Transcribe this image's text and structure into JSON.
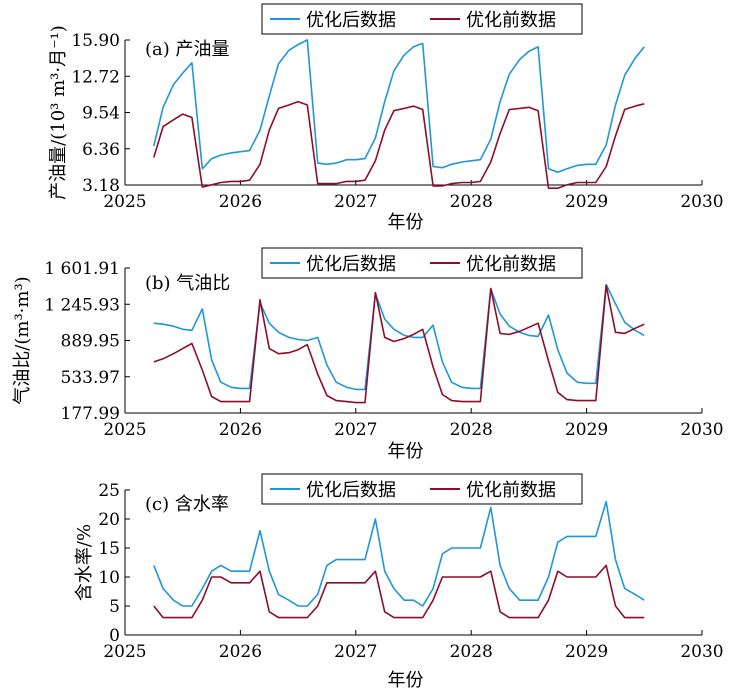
{
  "colors": {
    "after": "#1f96d8",
    "before": "#8c0e2a"
  },
  "chart_data": [
    {
      "type": "line",
      "title": "(a) 产油量",
      "xlabel": "年份",
      "ylabel": "产油量/(10³ m³·月⁻¹)",
      "xlim": [
        2025,
        2030
      ],
      "ylim": [
        3.18,
        15.9
      ],
      "xticks": [
        "2025",
        "2026",
        "2027",
        "2028",
        "2029",
        "2030"
      ],
      "yticks": [
        "3.18",
        "6.36",
        "9.54",
        "12.72",
        "15.90"
      ],
      "legend": [
        "优化后数据",
        "优化前数据"
      ],
      "legend_position": "top",
      "series": [
        {
          "name": "优化后数据",
          "x": [
            2025.25,
            2025.33,
            2025.42,
            2025.5,
            2025.58,
            2025.67,
            2025.75,
            2025.83,
            2025.92,
            2026.0,
            2026.08,
            2026.17,
            2026.25,
            2026.33,
            2026.42,
            2026.5,
            2026.58,
            2026.67,
            2026.75,
            2026.83,
            2026.92,
            2027.0,
            2027.08,
            2027.17,
            2027.25,
            2027.33,
            2027.42,
            2027.5,
            2027.58,
            2027.67,
            2027.75,
            2027.83,
            2027.92,
            2028.0,
            2028.08,
            2028.17,
            2028.25,
            2028.33,
            2028.42,
            2028.5,
            2028.58,
            2028.67,
            2028.75,
            2028.83,
            2028.92,
            2029.0,
            2029.08,
            2029.17,
            2029.25,
            2029.33,
            2029.42,
            2029.5
          ],
          "values": [
            6.6,
            10.0,
            12.0,
            13.0,
            13.9,
            4.6,
            5.5,
            5.8,
            6.0,
            6.1,
            6.2,
            8.0,
            11.0,
            13.8,
            15.0,
            15.5,
            15.9,
            5.1,
            5.0,
            5.1,
            5.4,
            5.4,
            5.5,
            7.3,
            10.5,
            13.2,
            14.6,
            15.3,
            15.6,
            4.8,
            4.7,
            5.0,
            5.2,
            5.3,
            5.4,
            7.2,
            10.5,
            12.9,
            14.2,
            14.9,
            15.3,
            4.6,
            4.3,
            4.6,
            4.9,
            5.0,
            5.0,
            6.7,
            10.2,
            12.8,
            14.3,
            15.3
          ]
        },
        {
          "name": "优化前数据",
          "x": [
            2025.25,
            2025.33,
            2025.42,
            2025.5,
            2025.58,
            2025.67,
            2025.75,
            2025.83,
            2025.92,
            2026.0,
            2026.08,
            2026.17,
            2026.25,
            2026.33,
            2026.42,
            2026.5,
            2026.58,
            2026.67,
            2026.75,
            2026.83,
            2026.92,
            2027.0,
            2027.08,
            2027.17,
            2027.25,
            2027.33,
            2027.42,
            2027.5,
            2027.58,
            2027.67,
            2027.75,
            2027.83,
            2027.92,
            2028.0,
            2028.08,
            2028.17,
            2028.25,
            2028.33,
            2028.42,
            2028.5,
            2028.58,
            2028.67,
            2028.75,
            2028.83,
            2028.92,
            2029.0,
            2029.08,
            2029.17,
            2029.25,
            2029.33,
            2029.42,
            2029.5
          ],
          "values": [
            5.6,
            8.3,
            8.9,
            9.4,
            9.1,
            3.0,
            3.2,
            3.4,
            3.5,
            3.5,
            3.6,
            5.0,
            8.0,
            9.9,
            10.2,
            10.5,
            10.2,
            3.3,
            3.3,
            3.3,
            3.5,
            3.5,
            3.6,
            5.3,
            8.0,
            9.7,
            9.9,
            10.1,
            9.8,
            3.1,
            3.1,
            3.3,
            3.4,
            3.4,
            3.5,
            5.2,
            7.7,
            9.8,
            9.9,
            10.0,
            9.7,
            2.9,
            2.9,
            3.2,
            3.4,
            3.4,
            3.4,
            4.8,
            7.5,
            9.8,
            10.1,
            10.3
          ]
        }
      ]
    },
    {
      "type": "line",
      "title": "(b) 气油比",
      "xlabel": "年份",
      "ylabel": "气油比/(m³·m³)",
      "xlim": [
        2025,
        2030
      ],
      "ylim": [
        177.99,
        1601.91
      ],
      "xticks": [
        "2025",
        "2026",
        "2027",
        "2028",
        "2029",
        "2030"
      ],
      "yticks": [
        "177.99",
        "533.97",
        "889.95",
        "1 245.93",
        "1 601.91"
      ],
      "legend": [
        "优化后数据",
        "优化前数据"
      ],
      "legend_position": "top",
      "series": [
        {
          "name": "优化后数据",
          "x": [
            2025.25,
            2025.33,
            2025.42,
            2025.5,
            2025.58,
            2025.67,
            2025.75,
            2025.83,
            2025.92,
            2026.0,
            2026.08,
            2026.17,
            2026.25,
            2026.33,
            2026.42,
            2026.5,
            2026.58,
            2026.67,
            2026.75,
            2026.83,
            2026.92,
            2027.0,
            2027.08,
            2027.17,
            2027.25,
            2027.33,
            2027.42,
            2027.5,
            2027.58,
            2027.67,
            2027.75,
            2027.83,
            2027.92,
            2028.0,
            2028.08,
            2028.17,
            2028.25,
            2028.33,
            2028.42,
            2028.5,
            2028.58,
            2028.67,
            2028.75,
            2028.83,
            2028.92,
            2029.0,
            2029.08,
            2029.17,
            2029.25,
            2029.33,
            2029.42,
            2029.5
          ],
          "values": [
            1060,
            1050,
            1030,
            1000,
            990,
            1200,
            700,
            480,
            430,
            420,
            420,
            1260,
            1060,
            970,
            920,
            900,
            890,
            920,
            650,
            480,
            430,
            410,
            410,
            1350,
            1100,
            1000,
            940,
            920,
            920,
            1040,
            680,
            480,
            430,
            420,
            420,
            1400,
            1150,
            1030,
            970,
            940,
            930,
            1140,
            800,
            570,
            480,
            470,
            470,
            1440,
            1250,
            1070,
            990,
            940
          ]
        },
        {
          "name": "优化前数据",
          "x": [
            2025.25,
            2025.33,
            2025.42,
            2025.5,
            2025.58,
            2025.67,
            2025.75,
            2025.83,
            2025.92,
            2026.0,
            2026.08,
            2026.17,
            2026.25,
            2026.33,
            2026.42,
            2026.5,
            2026.58,
            2026.67,
            2026.75,
            2026.83,
            2026.92,
            2027.0,
            2027.08,
            2027.17,
            2027.25,
            2027.33,
            2027.42,
            2027.5,
            2027.58,
            2027.67,
            2027.75,
            2027.83,
            2027.92,
            2028.0,
            2028.08,
            2028.17,
            2028.25,
            2028.33,
            2028.42,
            2028.5,
            2028.58,
            2028.67,
            2028.75,
            2028.83,
            2028.92,
            2029.0,
            2029.08,
            2029.17,
            2029.25,
            2029.33,
            2029.42,
            2029.5
          ],
          "values": [
            680,
            710,
            760,
            810,
            860,
            600,
            340,
            290,
            290,
            290,
            290,
            1290,
            810,
            760,
            770,
            800,
            850,
            560,
            350,
            300,
            290,
            280,
            280,
            1360,
            920,
            880,
            910,
            950,
            1000,
            630,
            360,
            300,
            290,
            290,
            290,
            1400,
            960,
            950,
            980,
            1020,
            1060,
            690,
            380,
            310,
            300,
            300,
            300,
            1430,
            970,
            960,
            1010,
            1050
          ]
        }
      ]
    },
    {
      "type": "line",
      "title": "(c) 含水率",
      "xlabel": "年份",
      "ylabel": "含水率/%",
      "xlim": [
        2025,
        2030
      ],
      "ylim": [
        0,
        25
      ],
      "xticks": [
        "2025",
        "2026",
        "2027",
        "2028",
        "2029",
        "2030"
      ],
      "yticks": [
        "0",
        "5",
        "10",
        "15",
        "20",
        "25"
      ],
      "legend": [
        "优化后数据",
        "优化前数据"
      ],
      "legend_position": "top",
      "series": [
        {
          "name": "优化后数据",
          "x": [
            2025.25,
            2025.33,
            2025.42,
            2025.5,
            2025.58,
            2025.67,
            2025.75,
            2025.83,
            2025.92,
            2026.0,
            2026.08,
            2026.17,
            2026.25,
            2026.33,
            2026.42,
            2026.5,
            2026.58,
            2026.67,
            2026.75,
            2026.83,
            2026.92,
            2027.0,
            2027.08,
            2027.17,
            2027.25,
            2027.33,
            2027.42,
            2027.5,
            2027.58,
            2027.67,
            2027.75,
            2027.83,
            2027.92,
            2028.0,
            2028.08,
            2028.17,
            2028.25,
            2028.33,
            2028.42,
            2028.5,
            2028.58,
            2028.67,
            2028.75,
            2028.83,
            2028.92,
            2029.0,
            2029.08,
            2029.17,
            2029.25,
            2029.33,
            2029.42,
            2029.5
          ],
          "values": [
            12,
            8,
            6,
            5,
            5,
            8,
            11,
            12,
            11,
            11,
            11,
            18,
            11,
            7,
            6,
            5,
            5,
            7,
            12,
            13,
            13,
            13,
            13,
            20,
            11,
            8,
            6,
            6,
            5,
            8,
            14,
            15,
            15,
            15,
            15,
            22,
            12,
            8,
            6,
            6,
            6,
            10,
            16,
            17,
            17,
            17,
            17,
            23,
            13,
            8,
            7,
            6
          ]
        },
        {
          "name": "优化前数据",
          "x": [
            2025.25,
            2025.33,
            2025.42,
            2025.5,
            2025.58,
            2025.67,
            2025.75,
            2025.83,
            2025.92,
            2026.0,
            2026.08,
            2026.17,
            2026.25,
            2026.33,
            2026.42,
            2026.5,
            2026.58,
            2026.67,
            2026.75,
            2026.83,
            2026.92,
            2027.0,
            2027.08,
            2027.17,
            2027.25,
            2027.33,
            2027.42,
            2027.5,
            2027.58,
            2027.67,
            2027.75,
            2027.83,
            2027.92,
            2028.0,
            2028.08,
            2028.17,
            2028.25,
            2028.33,
            2028.42,
            2028.5,
            2028.58,
            2028.67,
            2028.75,
            2028.83,
            2028.92,
            2029.0,
            2029.08,
            2029.17,
            2029.25,
            2029.33,
            2029.42,
            2029.5
          ],
          "values": [
            5,
            3,
            3,
            3,
            3,
            6,
            10,
            10,
            9,
            9,
            9,
            11,
            4,
            3,
            3,
            3,
            3,
            5,
            9,
            9,
            9,
            9,
            9,
            11,
            4,
            3,
            3,
            3,
            3,
            6,
            10,
            10,
            10,
            10,
            10,
            11,
            4,
            3,
            3,
            3,
            3,
            6,
            11,
            10,
            10,
            10,
            10,
            12,
            5,
            3,
            3,
            3
          ]
        }
      ]
    }
  ]
}
